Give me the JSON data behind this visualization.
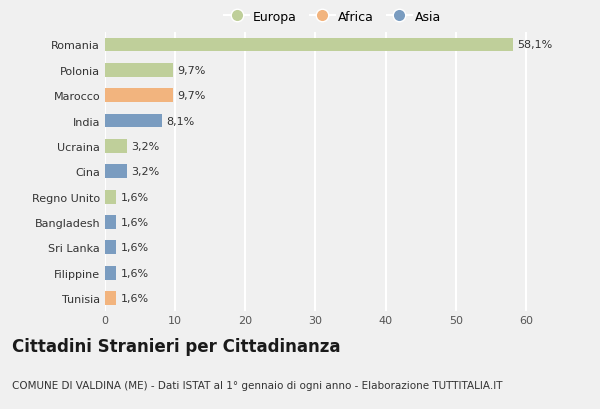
{
  "countries": [
    "Romania",
    "Polonia",
    "Marocco",
    "India",
    "Ucraina",
    "Cina",
    "Regno Unito",
    "Bangladesh",
    "Sri Lanka",
    "Filippine",
    "Tunisia"
  ],
  "values": [
    58.1,
    9.7,
    9.7,
    8.1,
    3.2,
    3.2,
    1.6,
    1.6,
    1.6,
    1.6,
    1.6
  ],
  "labels": [
    "58,1%",
    "9,7%",
    "9,7%",
    "8,1%",
    "3,2%",
    "3,2%",
    "1,6%",
    "1,6%",
    "1,6%",
    "1,6%",
    "1,6%"
  ],
  "continents": [
    "Europa",
    "Europa",
    "Africa",
    "Asia",
    "Europa",
    "Asia",
    "Europa",
    "Asia",
    "Asia",
    "Asia",
    "Africa"
  ],
  "bar_colors": [
    "#bfcf9a",
    "#bfcf9a",
    "#f2b47e",
    "#7a9cc0",
    "#bfcf9a",
    "#7a9cc0",
    "#bfcf9a",
    "#7a9cc0",
    "#7a9cc0",
    "#7a9cc0",
    "#f2b47e"
  ],
  "title": "Cittadini Stranieri per Cittadinanza",
  "subtitle": "COMUNE DI VALDINA (ME) - Dati ISTAT al 1° gennaio di ogni anno - Elaborazione TUTTITALIA.IT",
  "xlim": [
    0,
    65
  ],
  "xticks": [
    0,
    10,
    20,
    30,
    40,
    50,
    60
  ],
  "legend_labels": [
    "Europa",
    "Africa",
    "Asia"
  ],
  "legend_colors": [
    "#bfcf9a",
    "#f2b47e",
    "#7a9cc0"
  ],
  "bg_color": "#f0f0f0",
  "plot_bg_color": "#f0f0f0",
  "grid_color": "#ffffff",
  "title_fontsize": 12,
  "subtitle_fontsize": 7.5,
  "label_fontsize": 8,
  "ytick_fontsize": 8,
  "xtick_fontsize": 8,
  "legend_fontsize": 9,
  "bar_height": 0.55
}
